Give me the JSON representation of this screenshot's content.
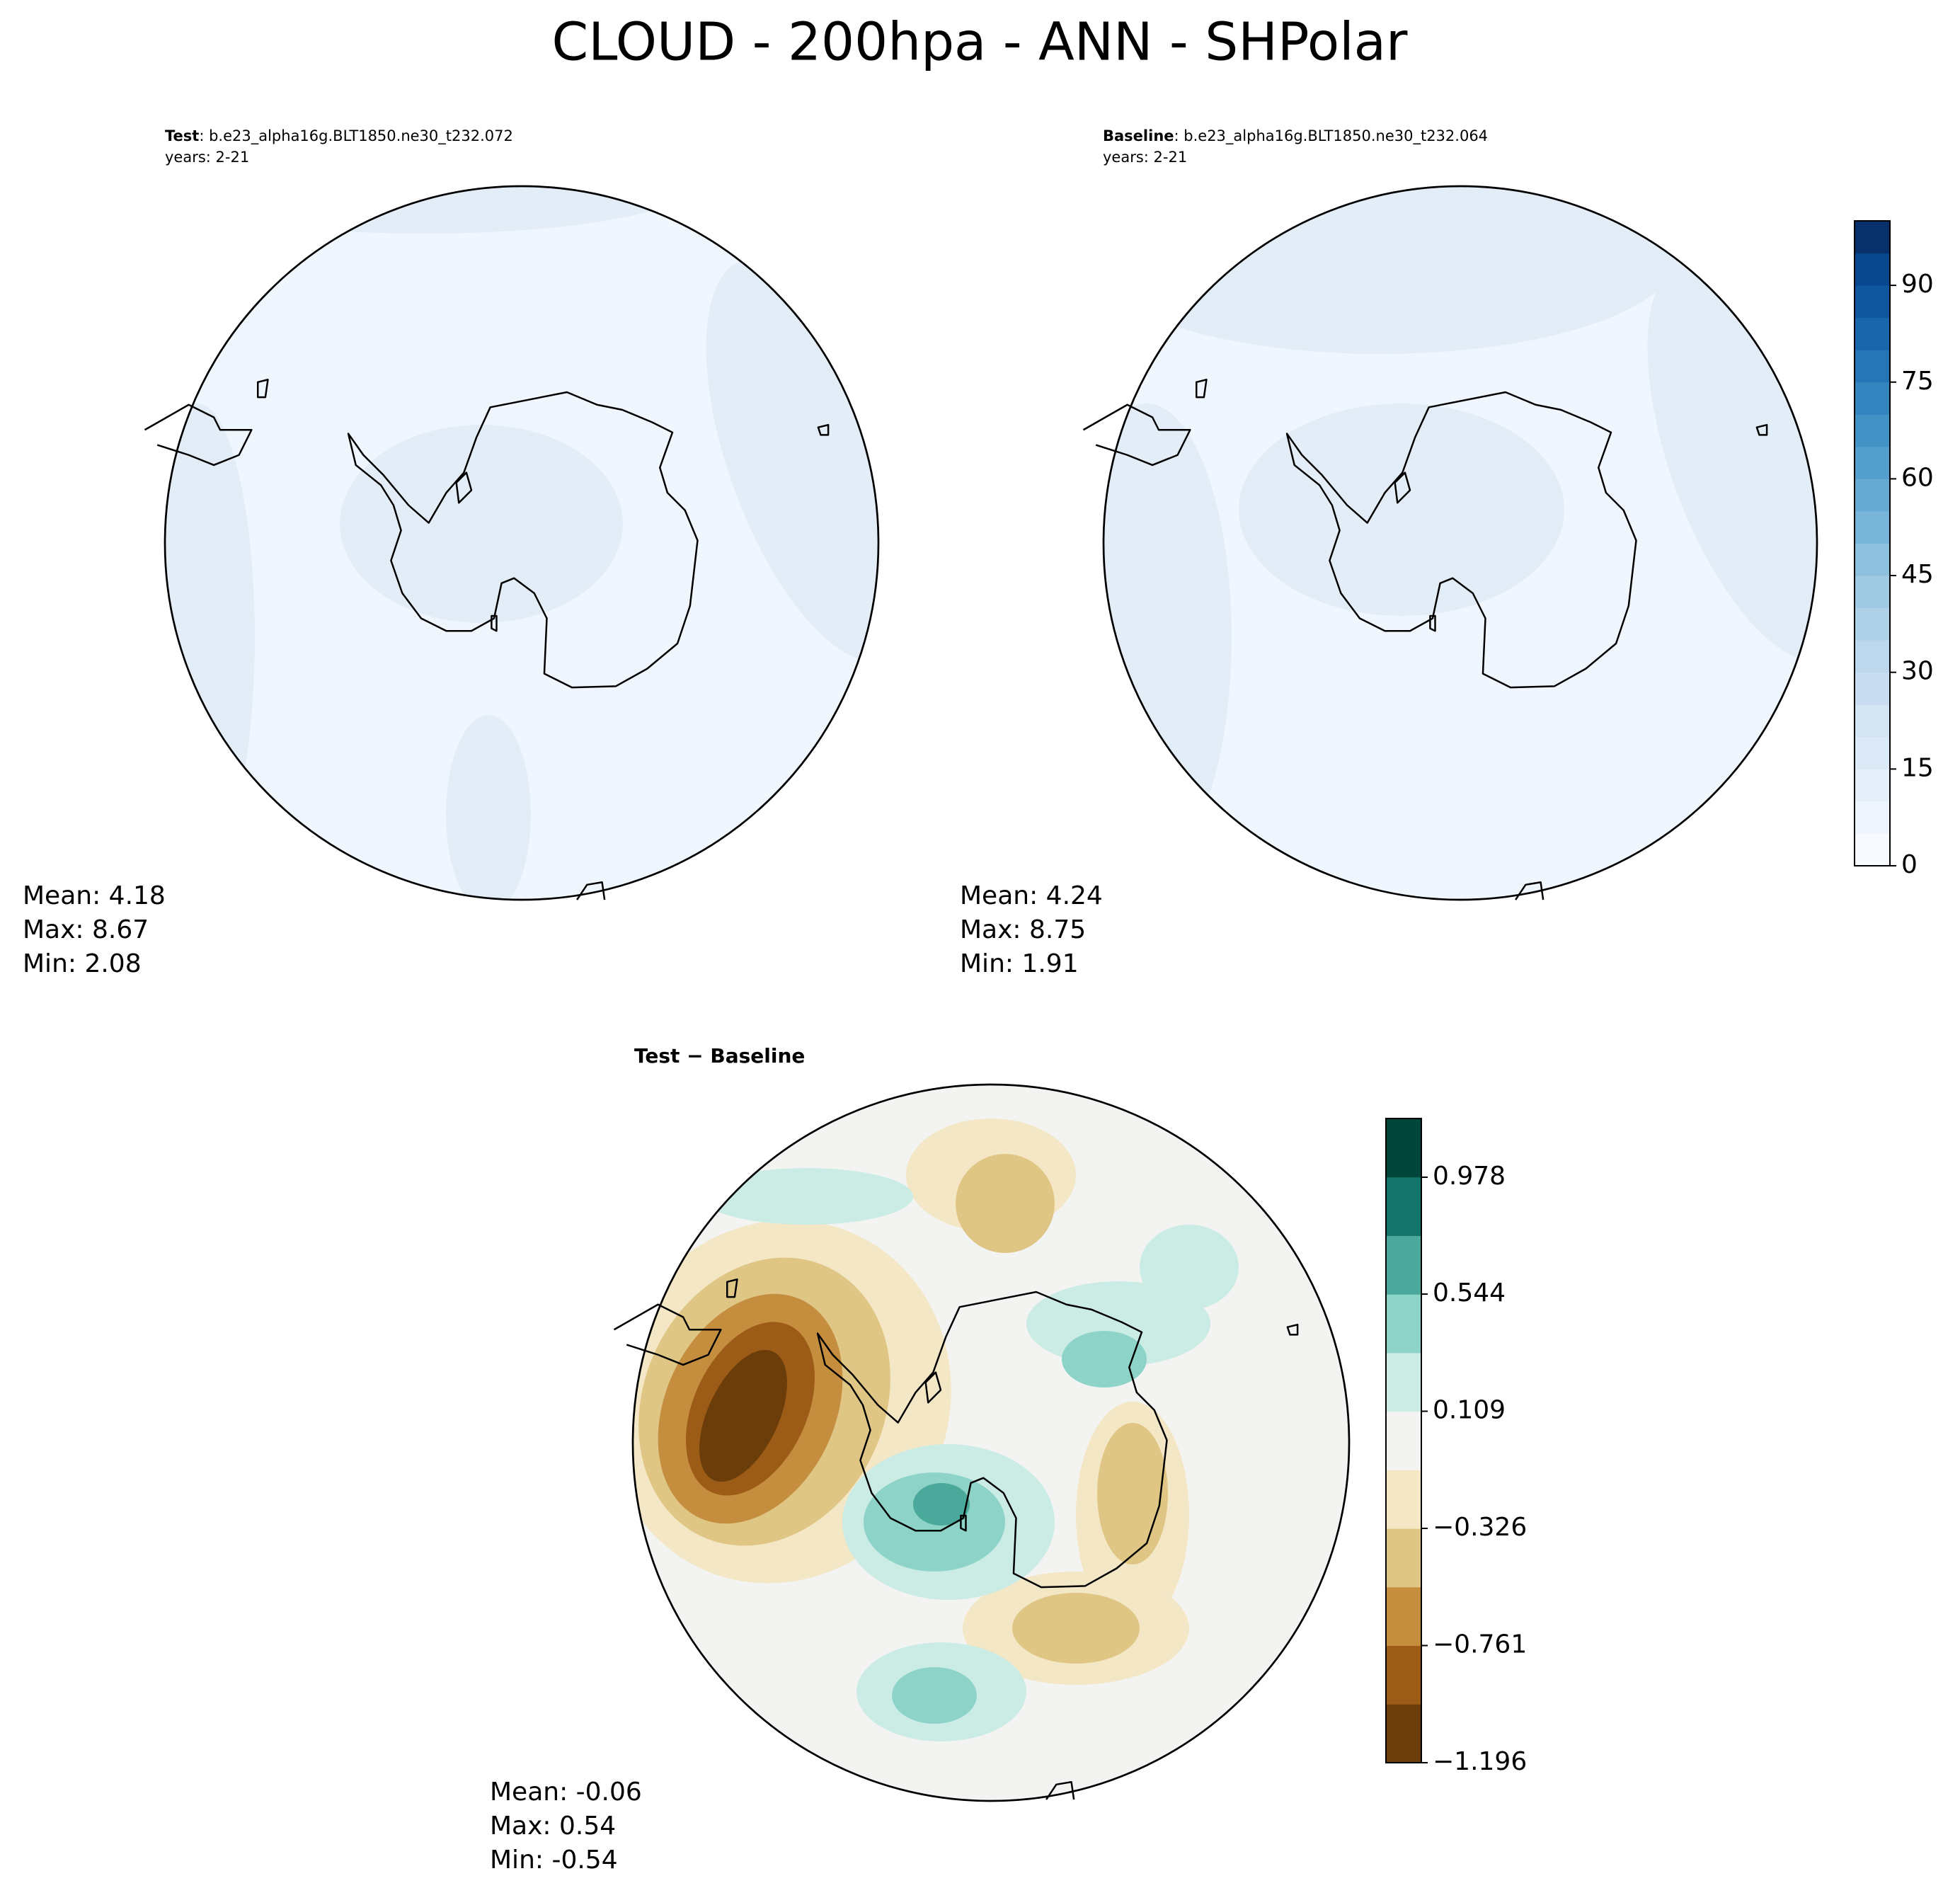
{
  "title": "CLOUD - 200hpa - ANN - SHPolar",
  "panels": [
    {
      "label": "Test",
      "case": ": b.e23_alpha16g.BLT1850.ne30_t232.072",
      "years": "years: 2-21",
      "stats": [
        "Mean:  4.18",
        "Max:  8.67",
        "Min:  2.08"
      ]
    },
    {
      "label": "Baseline",
      "case": ": b.e23_alpha16g.BLT1850.ne30_t232.064",
      "years": "years: 2-21",
      "stats": [
        "Mean:  4.24",
        "Max:  8.75",
        "Min:  1.91"
      ]
    },
    {
      "label": "Test − Baseline",
      "stats": [
        "Mean: -0.06",
        "Max:  0.54",
        "Min: -0.54"
      ]
    }
  ],
  "colorbars": [
    {
      "lim": [
        0,
        100
      ],
      "ticks": [
        0,
        15,
        30,
        45,
        60,
        75,
        90
      ],
      "colors": [
        "#f7fbff",
        "#eef5fc",
        "#e5eff9",
        "#dce9f6",
        "#d3e4f3",
        "#c9ddf0",
        "#bdd7ec",
        "#b0d2e8",
        "#a0cae3",
        "#8dc0dd",
        "#79b5d9",
        "#66aad4",
        "#549fcd",
        "#4292c6",
        "#3484bf",
        "#2575b7",
        "#1966ad",
        "#0f58a0",
        "#08488e",
        "#08306b"
      ]
    },
    {
      "lim": [
        -1.196,
        1.196
      ],
      "ticks": [
        {
          "value": -1.196,
          "label": "−1.196"
        },
        {
          "value": -0.761,
          "label": "−0.761"
        },
        {
          "value": -0.326,
          "label": "−0.326"
        },
        0.109,
        0.544,
        0.978
      ],
      "colors": [
        "#6b3d0a",
        "#9c5b16",
        "#c48e3e",
        "#dfc685",
        "#f4e7c6",
        "#f3f4f2",
        "#cbebe5",
        "#8dd3c7",
        "#4aa99a",
        "#13746b",
        "#00463a"
      ]
    }
  ]
}
